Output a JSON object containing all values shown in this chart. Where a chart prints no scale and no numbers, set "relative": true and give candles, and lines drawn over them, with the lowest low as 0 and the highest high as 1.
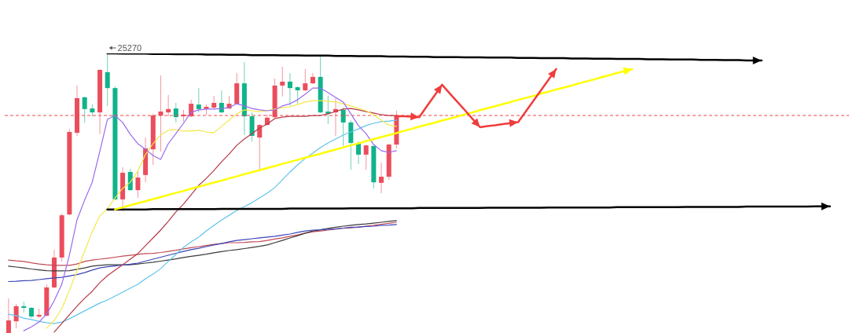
{
  "chart_data": {
    "type": "candlestick",
    "relative": true,
    "tick_labels": false,
    "categories": [
      null,
      null,
      null,
      null,
      null,
      null,
      null,
      null,
      null,
      null,
      null,
      null,
      null,
      null,
      null,
      null,
      null,
      null,
      null,
      null,
      null,
      null,
      null,
      null,
      null,
      null,
      null,
      null,
      null,
      null,
      null,
      null,
      null,
      null,
      null,
      null,
      null,
      null,
      null,
      null,
      null,
      null,
      null,
      null,
      null,
      null,
      null,
      null,
      null,
      null,
      null,
      null,
      null,
      null,
      null,
      null,
      null,
      null,
      null,
      null,
      null,
      null,
      null,
      null,
      null,
      null,
      null,
      null,
      null,
      null,
      null,
      null,
      null,
      null,
      null,
      null,
      null,
      null,
      null,
      null,
      null,
      null,
      null,
      null,
      null,
      null,
      null,
      null,
      null,
      null,
      null,
      null,
      null,
      null,
      null,
      null,
      null,
      null,
      null,
      null,
      null,
      null,
      null,
      null,
      null,
      null,
      null,
      null,
      null,
      null,
      null
    ],
    "ohlc": [
      [
        0,
        0.124,
        0,
        0.045
      ],
      [
        0.042,
        0.104,
        0.017,
        0.096
      ],
      [
        0.096,
        0.112,
        0.073,
        0.09
      ],
      [
        0.09,
        0.093,
        0.053,
        0.059
      ],
      [
        0.059,
        0.087,
        0.053,
        0.065
      ],
      [
        0.062,
        0.174,
        0.059,
        0.163
      ],
      [
        0.163,
        0.298,
        0.16,
        0.27
      ],
      [
        0.27,
        0.427,
        0.256,
        0.421
      ],
      [
        0.424,
        0.73,
        0.421,
        0.719
      ],
      [
        0.716,
        0.885,
        0.705,
        0.84
      ],
      [
        0.843,
        0.846,
        0.753,
        0.801
      ],
      [
        0.803,
        0.817,
        0.775,
        0.789
      ],
      [
        0.789,
        0.944,
        0.711,
        0.941
      ],
      [
        0.933,
        1,
        0.812,
        0.876
      ],
      [
        0.876,
        0.882,
        0.475,
        0.478
      ],
      [
        0.478,
        0.593,
        0.435,
        0.573
      ],
      [
        0.576,
        0.587,
        0.508,
        0.511
      ],
      [
        0.511,
        0.581,
        0.483,
        0.556
      ],
      [
        0.565,
        0.699,
        0.539,
        0.66
      ],
      [
        0.657,
        0.784,
        0.601,
        0.778
      ],
      [
        0.778,
        0.921,
        0.649,
        0.792
      ],
      [
        0.789,
        0.851,
        0.775,
        0.801
      ],
      [
        0.803,
        0.823,
        0.753,
        0.772
      ],
      [
        0.775,
        0.798,
        0.756,
        0.781
      ],
      [
        0.775,
        0.834,
        0.772,
        0.82
      ],
      [
        0.817,
        0.876,
        0.789,
        0.801
      ],
      [
        0.801,
        0.817,
        0.781,
        0.809
      ],
      [
        0.806,
        0.848,
        0.803,
        0.823
      ],
      [
        0.823,
        0.868,
        0.787,
        0.789
      ],
      [
        0.803,
        0.848,
        0.801,
        0.82
      ],
      [
        0.82,
        0.93,
        0.817,
        0.893
      ],
      [
        0.893,
        0.969,
        0.708,
        0.775
      ],
      [
        0.775,
        0.789,
        0.685,
        0.705
      ],
      [
        0.699,
        0.747,
        0.581,
        0.744
      ],
      [
        0.744,
        0.781,
        0.742,
        0.77
      ],
      [
        0.772,
        0.91,
        0.77,
        0.885
      ],
      [
        0.885,
        0.952,
        0.846,
        0.899
      ],
      [
        0.899,
        0.93,
        0.812,
        0.876
      ],
      [
        0.879,
        0.882,
        0.82,
        0.868
      ],
      [
        0.868,
        0.944,
        0.865,
        0.893
      ],
      [
        0.893,
        0.93,
        0.89,
        0.916
      ],
      [
        0.916,
        0.989,
        0.787,
        0.789
      ],
      [
        0.792,
        0.848,
        0.747,
        0.784
      ],
      [
        0.789,
        0.84,
        0.705,
        0.801
      ],
      [
        0.798,
        0.806,
        0.669,
        0.753
      ],
      [
        0.753,
        0.761,
        0.584,
        0.68
      ],
      [
        0.68,
        0.685,
        0.604,
        0.638
      ],
      [
        0.638,
        0.674,
        0.584,
        0.671
      ],
      [
        0.669,
        0.669,
        0.517,
        0.539
      ],
      [
        0.537,
        0.61,
        0.5,
        0.559
      ],
      [
        0.559,
        0.677,
        0.548,
        0.674
      ],
      [
        0.674,
        0.795,
        0.66,
        0.778
      ],
      null,
      null,
      null,
      null,
      null,
      null,
      null,
      null,
      null,
      null,
      null,
      null,
      null,
      null,
      null,
      null,
      null,
      null,
      null,
      null,
      null,
      null,
      null,
      null,
      null,
      null,
      null,
      null,
      null,
      null,
      null,
      null,
      null,
      null,
      null,
      null,
      null,
      null,
      null,
      null,
      null,
      null,
      null,
      null,
      null,
      null,
      null,
      null,
      null,
      null,
      null,
      null,
      null,
      null,
      null,
      null,
      null,
      null,
      null
    ],
    "colors": [
      "#eb4d5c",
      "#eb4d5c",
      "#10b38a",
      "#10b38a",
      "#eb4d5c",
      "#eb4d5c",
      "#eb4d5c",
      "#eb4d5c",
      "#eb4d5c",
      "#eb4d5c",
      "#10b38a",
      "#10b38a",
      "#eb4d5c",
      "#10b38a",
      "#10b38a",
      "#eb4d5c",
      "#10b38a",
      "#eb4d5c",
      "#eb4d5c",
      "#eb4d5c",
      "#eb4d5c",
      "#eb4d5c",
      "#10b38a",
      "#eb4d5c",
      "#eb4d5c",
      "#10b38a",
      "#eb4d5c",
      "#eb4d5c",
      "#10b38a",
      "#eb4d5c",
      "#eb4d5c",
      "#10b38a",
      "#10b38a",
      "#eb4d5c",
      "#eb4d5c",
      "#eb4d5c",
      "#eb4d5c",
      "#10b38a",
      "#10b38a",
      "#eb4d5c",
      "#eb4d5c",
      "#10b38a",
      "#10b38a",
      "#eb4d5c",
      "#10b38a",
      "#10b38a",
      "#10b38a",
      "#eb4d5c",
      "#10b38a",
      "#eb4d5c",
      "#eb4d5c",
      "#eb4d5c",
      null,
      null,
      null,
      null,
      null,
      null,
      null,
      null,
      null,
      null,
      null,
      null,
      null,
      null,
      null,
      null,
      null,
      null,
      null,
      null,
      null,
      null,
      null,
      null,
      null,
      null,
      null,
      null,
      null,
      null,
      null,
      null,
      null,
      null,
      null,
      null,
      null,
      null,
      null,
      null,
      null,
      null,
      null,
      null,
      null,
      null,
      null,
      null,
      null,
      null,
      null,
      null,
      null,
      null,
      null,
      null,
      null,
      null,
      null
    ],
    "series": [
      {
        "type": "line",
        "color": "#c24a55",
        "values": [
          0.261,
          0.258,
          0.256,
          0.251,
          0.247,
          0.244,
          0.242,
          0.242,
          0.242,
          0.247,
          0.256,
          0.261,
          0.264,
          0.267,
          0.271,
          0.275,
          0.278,
          0.281,
          0.284,
          0.285,
          0.288,
          0.292,
          0.296,
          0.301,
          0.305,
          0.309,
          0.313,
          0.317,
          0.32,
          0.323,
          0.323,
          0.324,
          0.326,
          0.327,
          0.331,
          0.336,
          0.34,
          0.346,
          0.351,
          0.357,
          0.362,
          0.365,
          0.368,
          0.372,
          0.375,
          0.376,
          0.379,
          0.382,
          0.385,
          0.389,
          0.392,
          0.396,
          null,
          null,
          null,
          null,
          null,
          null,
          null,
          null,
          null,
          null,
          null,
          null,
          null,
          null,
          null,
          null,
          null,
          null,
          null,
          null,
          null,
          null,
          null,
          null,
          null,
          null,
          null,
          null,
          null,
          null,
          null,
          null,
          null,
          null,
          null,
          null,
          null,
          null,
          null,
          null,
          null,
          null,
          null,
          null,
          null,
          null,
          null,
          null,
          null,
          null,
          null,
          null,
          null,
          null,
          null,
          null,
          null,
          null,
          null
        ]
      },
      {
        "type": "line",
        "color": "#3a3a3a",
        "values": [
          0.239,
          0.236,
          0.233,
          0.229,
          0.226,
          0.223,
          0.222,
          0.222,
          0.223,
          0.228,
          0.233,
          0.239,
          0.242,
          0.244,
          0.244,
          0.244,
          0.244,
          0.247,
          0.25,
          0.253,
          0.257,
          0.261,
          0.265,
          0.27,
          0.274,
          0.278,
          0.282,
          0.287,
          0.291,
          0.295,
          0.298,
          0.302,
          0.306,
          0.31,
          0.315,
          0.323,
          0.331,
          0.34,
          0.348,
          0.357,
          0.365,
          0.369,
          0.374,
          0.378,
          0.382,
          0.385,
          0.388,
          0.39,
          0.393,
          0.396,
          0.399,
          0.402,
          null,
          null,
          null,
          null,
          null,
          null,
          null,
          null,
          null,
          null,
          null,
          null,
          null,
          null,
          null,
          null,
          null,
          null,
          null,
          null,
          null,
          null,
          null,
          null,
          null,
          null,
          null,
          null,
          null,
          null,
          null,
          null,
          null,
          null,
          null,
          null,
          null,
          null,
          null,
          null,
          null,
          null,
          null,
          null,
          null,
          null,
          null,
          null,
          null,
          null,
          null,
          null,
          null,
          null,
          null,
          null,
          null,
          null,
          null
        ]
      },
      {
        "type": "line",
        "color": "#3b44b8",
        "values": [
          0.184,
          0.185,
          0.187,
          0.188,
          0.191,
          0.194,
          0.197,
          0.199,
          0.204,
          0.209,
          0.216,
          0.225,
          0.233,
          0.237,
          0.24,
          0.243,
          0.246,
          0.25,
          0.257,
          0.264,
          0.271,
          0.278,
          0.285,
          0.292,
          0.298,
          0.303,
          0.309,
          0.315,
          0.32,
          0.326,
          0.331,
          0.334,
          0.337,
          0.34,
          0.343,
          0.346,
          0.35,
          0.354,
          0.36,
          0.365,
          0.368,
          0.369,
          0.371,
          0.372,
          0.375,
          0.378,
          0.379,
          0.381,
          0.382,
          0.385,
          0.386,
          0.388,
          null,
          null,
          null,
          null,
          null,
          null,
          null,
          null,
          null,
          null,
          null,
          null,
          null,
          null,
          null,
          null,
          null,
          null,
          null,
          null,
          null,
          null,
          null,
          null,
          null,
          null,
          null,
          null,
          null,
          null,
          null,
          null,
          null,
          null,
          null,
          null,
          null,
          null,
          null,
          null,
          null,
          null,
          null,
          null,
          null,
          null,
          null,
          null,
          null,
          null,
          null,
          null,
          null,
          null,
          null,
          null,
          null,
          null,
          null
        ]
      },
      {
        "type": "line",
        "color": "#62c3ec",
        "values": [
          0.067,
          0.062,
          0.053,
          0.048,
          0.042,
          0.037,
          0.034,
          0.039,
          0.051,
          0.065,
          0.079,
          0.093,
          0.107,
          0.118,
          0.132,
          0.146,
          0.16,
          0.174,
          0.194,
          0.211,
          0.23,
          0.256,
          0.281,
          0.306,
          0.326,
          0.343,
          0.365,
          0.385,
          0.404,
          0.421,
          0.438,
          0.452,
          0.466,
          0.483,
          0.5,
          0.52,
          0.548,
          0.576,
          0.601,
          0.624,
          0.643,
          0.663,
          0.68,
          0.694,
          0.708,
          0.719,
          0.73,
          0.742,
          0.75,
          0.756,
          0.758,
          0.761,
          null,
          null,
          null,
          null,
          null,
          null,
          null,
          null,
          null,
          null,
          null,
          null,
          null,
          null,
          null,
          null,
          null,
          null,
          null,
          null,
          null,
          null,
          null,
          null,
          null,
          null,
          null,
          null,
          null,
          null,
          null,
          null,
          null,
          null,
          null,
          null,
          null,
          null,
          null,
          null,
          null,
          null,
          null,
          null,
          null,
          null,
          null,
          null,
          null,
          null,
          null,
          null,
          null,
          null,
          null,
          null,
          null,
          null,
          null
        ]
      },
      {
        "type": "line",
        "color": "#b53a45",
        "values": [
          null,
          null,
          null,
          null,
          null,
          null,
          0.003,
          0.034,
          0.065,
          0.096,
          0.124,
          0.149,
          0.18,
          0.205,
          0.225,
          0.244,
          0.264,
          0.284,
          0.312,
          0.34,
          0.368,
          0.399,
          0.433,
          0.461,
          0.494,
          0.528,
          0.553,
          0.581,
          0.612,
          0.64,
          0.671,
          0.694,
          0.713,
          0.733,
          0.747,
          0.767,
          0.772,
          0.775,
          0.775,
          0.775,
          0.778,
          0.778,
          0.784,
          0.792,
          0.801,
          0.803,
          0.798,
          0.792,
          0.787,
          0.781,
          0.778,
          0.778,
          null,
          null,
          null,
          null,
          null,
          null,
          null,
          null,
          null,
          null,
          null,
          null,
          null,
          null,
          null,
          null,
          null,
          null,
          null,
          null,
          null,
          null,
          null,
          null,
          null,
          null,
          null,
          null,
          null,
          null,
          null,
          null,
          null,
          null,
          null,
          null,
          null,
          null,
          null,
          null,
          null,
          null,
          null,
          null,
          null,
          null,
          null,
          null,
          null,
          null,
          null,
          null,
          null,
          null,
          null,
          null,
          null,
          null,
          null
        ]
      },
      {
        "type": "line",
        "color": "#f5e84a",
        "values": [
          null,
          null,
          null,
          null,
          null,
          0.017,
          0.045,
          0.087,
          0.152,
          0.222,
          0.292,
          0.362,
          0.419,
          0.444,
          0.483,
          0.517,
          0.539,
          0.579,
          0.638,
          0.677,
          0.708,
          0.725,
          0.728,
          0.722,
          0.722,
          0.725,
          0.719,
          0.716,
          0.739,
          0.761,
          0.784,
          0.798,
          0.795,
          0.792,
          0.795,
          0.801,
          0.806,
          0.809,
          0.817,
          0.826,
          0.831,
          0.831,
          0.829,
          0.826,
          0.82,
          0.812,
          0.803,
          0.795,
          0.781,
          0.761,
          0.744,
          0.739,
          null,
          null,
          null,
          null,
          null,
          null,
          null,
          null,
          null,
          null,
          null,
          null,
          null,
          null,
          null,
          null,
          null,
          null,
          null,
          null,
          null,
          null,
          null,
          null,
          null,
          null,
          null,
          null,
          null,
          null,
          null,
          null,
          null,
          null,
          null,
          null,
          null,
          null,
          null,
          null,
          null,
          null,
          null,
          null,
          null,
          null,
          null,
          null,
          null,
          null,
          null,
          null,
          null,
          null,
          null,
          null,
          null,
          null,
          null
        ]
      },
      {
        "type": "line",
        "color": "#9a6aee",
        "values": [
          null,
          null,
          0.008,
          0.022,
          0.039,
          0.067,
          0.115,
          0.174,
          0.278,
          0.404,
          0.475,
          0.539,
          0.649,
          0.764,
          0.778,
          0.753,
          0.711,
          0.677,
          0.657,
          0.635,
          0.621,
          0.677,
          0.713,
          0.75,
          0.789,
          0.798,
          0.801,
          0.801,
          0.803,
          0.806,
          0.82,
          0.812,
          0.803,
          0.798,
          0.795,
          0.798,
          0.812,
          0.82,
          0.834,
          0.854,
          0.876,
          0.876,
          0.86,
          0.843,
          0.826,
          0.784,
          0.742,
          0.713,
          0.674,
          0.652,
          0.646,
          0.652,
          null,
          null,
          null,
          null,
          null,
          null,
          null,
          null,
          null,
          null,
          null,
          null,
          null,
          null,
          null,
          null,
          null,
          null,
          null,
          null,
          null,
          null,
          null,
          null,
          null,
          null,
          null,
          null,
          null,
          null,
          null,
          null,
          null,
          null,
          null,
          null,
          null,
          null,
          null,
          null,
          null,
          null,
          null,
          null,
          null,
          null,
          null,
          null,
          null,
          null,
          null,
          null,
          null,
          null,
          null,
          null,
          null,
          null,
          null
        ]
      },
      {
        "type": "line",
        "color": "#000000",
        "values": [
          null,
          null,
          null,
          null,
          null,
          null,
          null,
          null,
          null,
          null,
          null,
          null,
          null,
          1,
          1,
          0.999,
          0.999,
          0.999,
          0.999,
          0.998,
          0.998,
          0.998,
          0.997,
          0.997,
          0.997,
          0.997,
          0.996,
          0.996,
          0.996,
          0.995,
          0.995,
          0.995,
          0.994,
          0.994,
          0.994,
          0.994,
          0.993,
          0.993,
          0.993,
          0.992,
          0.992,
          0.992,
          0.992,
          0.991,
          0.991,
          0.991,
          0.99,
          0.99,
          0.99,
          0.99,
          0.989,
          0.989,
          0.989,
          0.988,
          0.988,
          0.988,
          0.987,
          0.987,
          0.987,
          0.987,
          0.986,
          0.986,
          0.986,
          0.985,
          0.985,
          0.985,
          0.985,
          0.984,
          0.984,
          0.984,
          0.983,
          0.983,
          0.983,
          0.983,
          0.982,
          0.982,
          0.982,
          0.981,
          0.981,
          0.981,
          0.98,
          0.98,
          0.98,
          0.98,
          0.979,
          0.979,
          0.979,
          0.978,
          0.978,
          0.978,
          0.978,
          0.977,
          0.977,
          0.977,
          0.976,
          0.976,
          0.976,
          0.975,
          0.975,
          0.975,
          null,
          null,
          null,
          null,
          null,
          null,
          null,
          null,
          null,
          null,
          null
        ]
      },
      {
        "type": "line",
        "color": "#000000",
        "values": [
          null,
          null,
          null,
          null,
          null,
          null,
          null,
          null,
          null,
          null,
          null,
          null,
          null,
          0.442,
          0.442,
          0.442,
          0.442,
          0.442,
          0.442,
          0.443,
          0.443,
          0.443,
          0.443,
          0.443,
          0.443,
          0.443,
          0.443,
          0.443,
          0.444,
          0.444,
          0.444,
          0.444,
          0.444,
          0.444,
          0.444,
          0.444,
          0.444,
          0.445,
          0.445,
          0.445,
          0.445,
          0.445,
          0.445,
          0.445,
          0.445,
          0.446,
          0.446,
          0.446,
          0.446,
          0.446,
          0.446,
          0.446,
          0.446,
          0.446,
          0.447,
          0.447,
          0.447,
          0.447,
          0.447,
          0.447,
          0.447,
          0.447,
          0.447,
          0.448,
          0.448,
          0.448,
          0.448,
          0.448,
          0.448,
          0.448,
          0.448,
          0.449,
          0.449,
          0.449,
          0.449,
          0.449,
          0.449,
          0.449,
          0.449,
          0.449,
          0.45,
          0.45,
          0.45,
          0.45,
          0.45,
          0.45,
          0.45,
          0.45,
          0.45,
          0.451,
          0.451,
          0.451,
          0.451,
          0.451,
          0.451,
          0.451,
          0.451,
          0.452,
          0.452,
          0.452,
          0.452,
          0.452,
          0.452,
          0.452,
          0.452,
          0.452,
          0.453,
          0.453,
          0.453,
          null,
          null
        ]
      },
      {
        "type": "line",
        "color": "#ffff00",
        "values": [
          null,
          null,
          null,
          null,
          null,
          null,
          null,
          null,
          null,
          null,
          null,
          null,
          null,
          null,
          0.442,
          0.449,
          0.457,
          0.464,
          0.471,
          0.479,
          0.486,
          0.494,
          0.501,
          0.508,
          0.516,
          0.523,
          0.531,
          0.538,
          0.545,
          0.553,
          0.56,
          0.568,
          0.575,
          0.582,
          0.59,
          0.597,
          0.605,
          0.612,
          0.619,
          0.627,
          0.634,
          0.641,
          0.649,
          0.656,
          0.664,
          0.671,
          0.678,
          0.686,
          0.693,
          0.701,
          0.708,
          0.715,
          0.723,
          0.73,
          0.738,
          0.745,
          0.752,
          0.76,
          0.767,
          0.774,
          0.782,
          0.789,
          0.797,
          0.804,
          0.811,
          0.819,
          0.826,
          0.834,
          0.841,
          0.848,
          0.856,
          0.863,
          0.871,
          0.878,
          0.885,
          0.893,
          0.9,
          0.907,
          0.915,
          0.922,
          0.93,
          0.937,
          0.944,
          null,
          null,
          null,
          null,
          null,
          null,
          null,
          null,
          null,
          null,
          null,
          null,
          null,
          null,
          null,
          null,
          null,
          null,
          null,
          null,
          null,
          null,
          null,
          null,
          null,
          null,
          null,
          null
        ]
      },
      {
        "type": "line",
        "color": "#f03c3c",
        "values": [
          null,
          null,
          null,
          null,
          null,
          null,
          null,
          null,
          null,
          null,
          null,
          null,
          null,
          null,
          null,
          null,
          null,
          null,
          null,
          null,
          null,
          null,
          null,
          null,
          null,
          null,
          null,
          null,
          null,
          null,
          null,
          null,
          null,
          null,
          null,
          null,
          null,
          null,
          null,
          null,
          null,
          null,
          null,
          null,
          null,
          null,
          null,
          null,
          null,
          null,
          null,
          0.775,
          0.775,
          0.774,
          0.772,
          0.811,
          0.849,
          0.888,
          0.857,
          0.827,
          0.797,
          0.766,
          0.736,
          0.74,
          0.743,
          0.747,
          0.751,
          0.754,
          0.792,
          0.83,
          0.868,
          0.906,
          0.944,
          null,
          null,
          null,
          null,
          null,
          null,
          null,
          null,
          null,
          null,
          null,
          null,
          null,
          null,
          null,
          null,
          null,
          null,
          null,
          null,
          null,
          null,
          null,
          null,
          null,
          null,
          null,
          null,
          null,
          null,
          null,
          null,
          null,
          null,
          null,
          null,
          null,
          null
        ]
      }
    ],
    "ref_lines": [
      {
        "axis": "y",
        "value": 0.778,
        "color": "#f04848",
        "line_style": "dashed"
      }
    ],
    "annotations": [
      {
        "text": "25270",
        "y": 1
      }
    ]
  }
}
